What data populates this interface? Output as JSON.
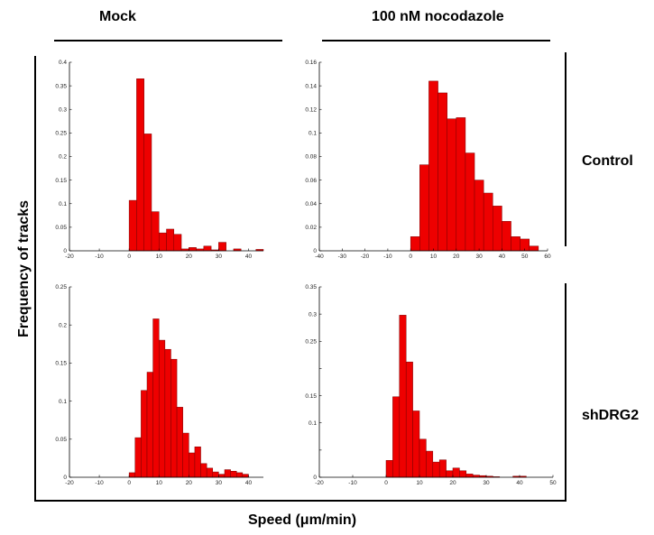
{
  "column_labels": [
    "Mock",
    "100 nM nocodazole"
  ],
  "row_labels": [
    "Control",
    "shDRG2"
  ],
  "ylabel": "Frequency of tracks",
  "xlabel": "Speed (μm/min)",
  "colors": {
    "bar": "#ee0000",
    "bar_edge": "#7a0000",
    "axis": "#000000"
  },
  "chart_data": [
    {
      "type": "bar",
      "id": "mock-control",
      "xlim": [
        -20,
        45
      ],
      "ylim": [
        0,
        0.4
      ],
      "bin_width": 2.5,
      "xticks": [
        -20,
        -10,
        0,
        10,
        20,
        30,
        40
      ],
      "yticks": [
        0,
        0.05,
        0.1,
        0.15,
        0.2,
        0.25,
        0.3,
        0.35,
        0.4
      ],
      "ytick_labels": [
        "0",
        "0.05",
        "0.1",
        "0.15",
        "0.2",
        "0.25",
        "0.3",
        "0.35",
        "0.4"
      ],
      "bins": [
        0,
        2.5,
        5,
        7.5,
        10,
        12.5,
        15,
        17.5,
        20,
        22.5,
        25,
        27.5,
        30,
        32.5,
        35,
        37.5,
        40,
        42.5
      ],
      "values": [
        0.107,
        0.365,
        0.248,
        0.083,
        0.038,
        0.046,
        0.035,
        0.004,
        0.007,
        0.004,
        0.01,
        0.002,
        0.018,
        0.0,
        0.004,
        0.0,
        0.0,
        0.003
      ]
    },
    {
      "type": "bar",
      "id": "nocodazole-control",
      "xlim": [
        -40,
        60
      ],
      "ylim": [
        0,
        0.16
      ],
      "bin_width": 4,
      "xticks": [
        -40,
        -30,
        -20,
        -10,
        0,
        10,
        20,
        30,
        40,
        50,
        60
      ],
      "xtick_labels": [
        "-40",
        "-30",
        "-20",
        "-10",
        "0",
        "10",
        "20",
        "30",
        "40",
        "50",
        "60"
      ],
      "yticks": [
        0,
        0.02,
        0.04,
        0.06,
        0.08,
        0.1,
        0.12,
        0.14,
        0.16
      ],
      "ytick_labels": [
        "0",
        "0.02",
        "0.04",
        "0.06",
        "0.08",
        "0.1",
        "0.12",
        "0.14",
        "0.16"
      ],
      "bins": [
        0,
        4,
        8,
        12,
        16,
        20,
        24,
        28,
        32,
        36,
        40,
        44,
        48,
        52
      ],
      "values": [
        0.012,
        0.073,
        0.144,
        0.134,
        0.112,
        0.113,
        0.083,
        0.06,
        0.049,
        0.038,
        0.025,
        0.012,
        0.01,
        0.004
      ]
    },
    {
      "type": "bar",
      "id": "mock-shdrg2",
      "xlim": [
        -20,
        45
      ],
      "ylim": [
        0,
        0.25
      ],
      "bin_width": 2,
      "xticks": [
        -20,
        -10,
        0,
        10,
        20,
        30,
        40
      ],
      "yticks": [
        0,
        0.05,
        0.1,
        0.15,
        0.2,
        0.25
      ],
      "ytick_labels": [
        "0",
        "0.05",
        "0.1",
        "0.15",
        "0.2",
        "0.25"
      ],
      "bins": [
        0,
        2,
        4,
        6,
        8,
        10,
        12,
        14,
        16,
        18,
        20,
        22,
        24,
        26,
        28,
        30,
        32,
        34,
        36,
        38,
        40
      ],
      "values": [
        0.006,
        0.052,
        0.114,
        0.138,
        0.208,
        0.18,
        0.168,
        0.155,
        0.092,
        0.058,
        0.032,
        0.04,
        0.018,
        0.012,
        0.007,
        0.004,
        0.01,
        0.008,
        0.006,
        0.004,
        0.0
      ]
    },
    {
      "type": "bar",
      "id": "nocodazole-shdrg2",
      "xlim": [
        -20,
        50
      ],
      "ylim": [
        0,
        0.35
      ],
      "bin_width": 2,
      "xticks": [
        -20,
        -10,
        0,
        10,
        20,
        30,
        40,
        50
      ],
      "yticks": [
        0,
        0.05,
        0.1,
        0.15,
        0.2,
        0.25,
        0.3,
        0.35
      ],
      "ytick_labels": [
        "0",
        "",
        "0.1",
        "0.15",
        "",
        "0.25",
        "0.3",
        "0.35"
      ],
      "bins": [
        0,
        2,
        4,
        6,
        8,
        10,
        12,
        14,
        16,
        18,
        20,
        22,
        24,
        26,
        28,
        30,
        32,
        34,
        36,
        38,
        40
      ],
      "values": [
        0.031,
        0.148,
        0.298,
        0.212,
        0.122,
        0.07,
        0.048,
        0.028,
        0.032,
        0.012,
        0.017,
        0.012,
        0.006,
        0.004,
        0.003,
        0.002,
        0.001,
        0.0,
        0.0,
        0.002,
        0.002
      ]
    }
  ]
}
